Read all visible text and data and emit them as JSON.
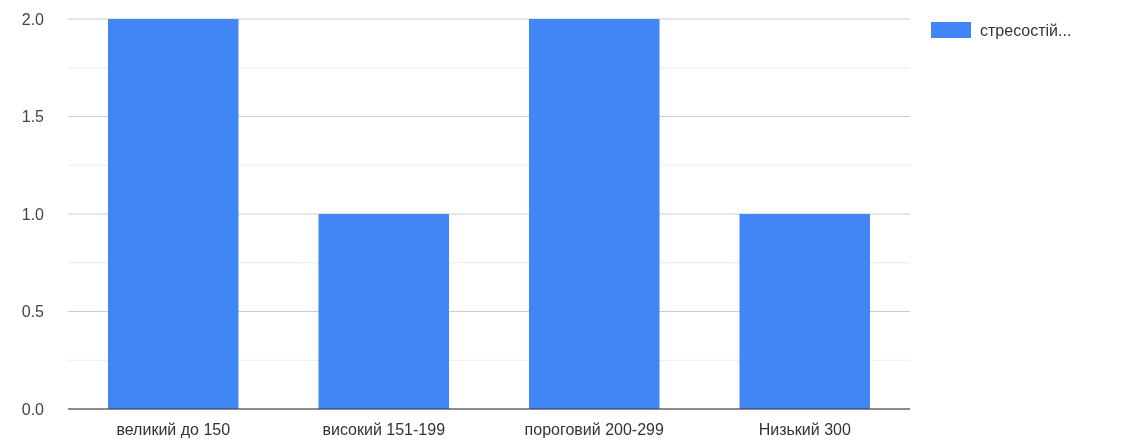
{
  "chart_data": {
    "type": "bar",
    "categories": [
      "великий до 150",
      "високий 151-199",
      "пороговий 200-299",
      "Низький 300"
    ],
    "series": [
      {
        "name": "стресостій...",
        "color": "#4285f4",
        "values": [
          2,
          1,
          2,
          1
        ]
      }
    ],
    "ylim": [
      0,
      2
    ],
    "yticks": [
      {
        "value": 0,
        "label": "0.0"
      },
      {
        "value": 0.25,
        "label": null
      },
      {
        "value": 0.5,
        "label": "0.5"
      },
      {
        "value": 0.75,
        "label": null
      },
      {
        "value": 1,
        "label": "1.0"
      },
      {
        "value": 1.25,
        "label": null
      },
      {
        "value": 1.5,
        "label": "1.5"
      },
      {
        "value": 1.75,
        "label": null
      },
      {
        "value": 2,
        "label": "2.0"
      }
    ],
    "grid": "y",
    "legend": "top right"
  }
}
